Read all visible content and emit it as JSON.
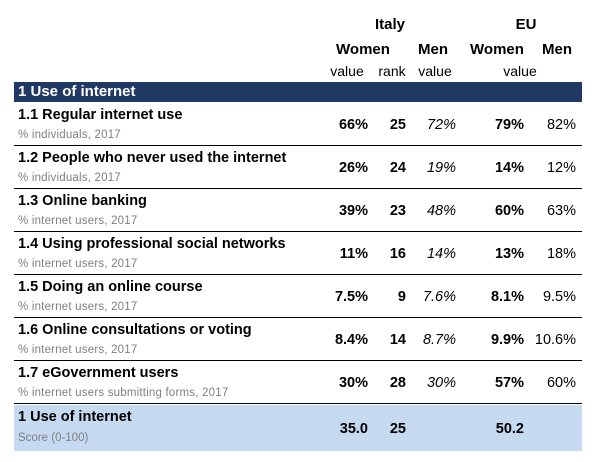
{
  "header": {
    "italy": "Italy",
    "eu": "EU",
    "women": "Women",
    "men": "Men",
    "eu_women": "Women",
    "eu_men": "Men",
    "value": "value",
    "rank": "rank",
    "men_value": "value",
    "eu_value": "value"
  },
  "section": {
    "title": "1 Use of internet"
  },
  "rows": [
    {
      "title": "1.1 Regular internet use",
      "unit": "% individuals, 2017",
      "it_women": "66%",
      "it_rank": "25",
      "it_men": "72%",
      "eu_women": "79%",
      "eu_men": "82%"
    },
    {
      "title": "1.2 People who never used the internet",
      "unit": "% individuals, 2017",
      "it_women": "26%",
      "it_rank": "24",
      "it_men": "19%",
      "eu_women": "14%",
      "eu_men": "12%"
    },
    {
      "title": "1.3 Online banking",
      "unit": "% internet users, 2017",
      "it_women": "39%",
      "it_rank": "23",
      "it_men": "48%",
      "eu_women": "60%",
      "eu_men": "63%"
    },
    {
      "title": "1.4 Using professional social networks",
      "unit": "% internet users, 2017",
      "it_women": "11%",
      "it_rank": "16",
      "it_men": "14%",
      "eu_women": "13%",
      "eu_men": "18%"
    },
    {
      "title": "1.5 Doing an online course",
      "unit": "% internet users, 2017",
      "it_women": "7.5%",
      "it_rank": "9",
      "it_men": "7.6%",
      "eu_women": "8.1%",
      "eu_men": "9.5%"
    },
    {
      "title": "1.6 Online consultations or voting",
      "unit": "% internet users, 2017",
      "it_women": "8.4%",
      "it_rank": "14",
      "it_men": "8.7%",
      "eu_women": "9.9%",
      "eu_men": "10.6%"
    },
    {
      "title": "1.7 eGovernment users",
      "unit": "% internet users submitting forms, 2017",
      "it_women": "30%",
      "it_rank": "28",
      "it_men": "30%",
      "eu_women": "57%",
      "eu_men": "60%"
    }
  ],
  "summary": {
    "title": "1 Use of internet",
    "unit": "Score (0-100)",
    "it_women": "35.0",
    "it_rank": "25",
    "eu_women": "50.2"
  }
}
